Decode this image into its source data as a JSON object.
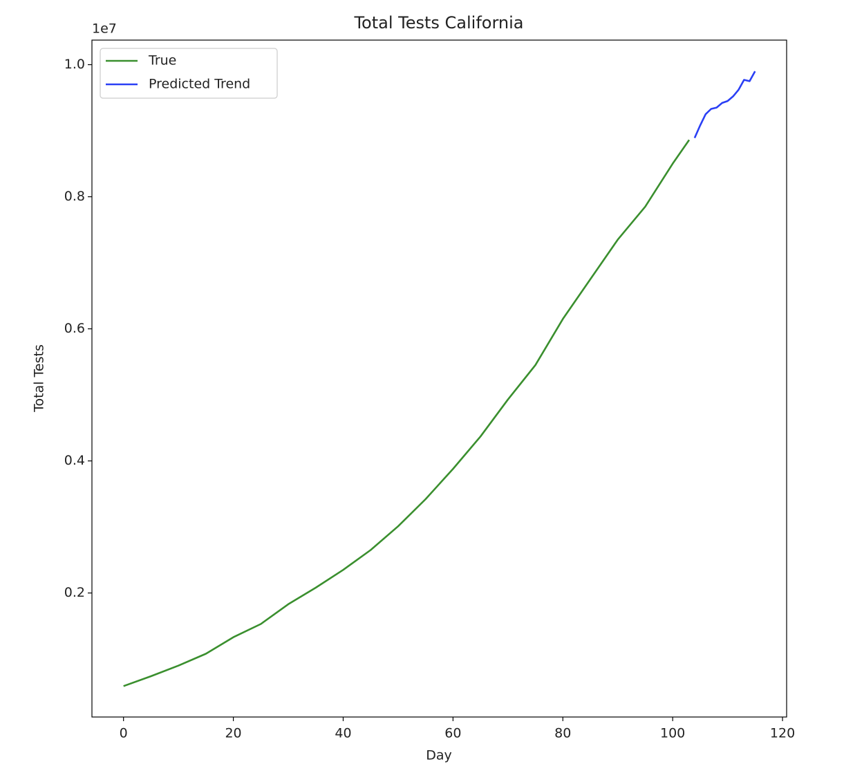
{
  "chart_data": {
    "type": "line",
    "title": "Total Tests California",
    "x_label": "Day",
    "y_label": "Total Tests",
    "y_offset_label": "1e7",
    "legend": "upper left",
    "grid": false,
    "xlim": [
      -5.75,
      120.75
    ],
    "xticks": [
      0,
      20,
      40,
      60,
      80,
      100,
      120
    ],
    "ylim": [
      122000,
      10372000
    ],
    "yticks": [
      {
        "value": 2000000,
        "label": "0.2"
      },
      {
        "value": 4000000,
        "label": "0.4"
      },
      {
        "value": 6000000,
        "label": "0.6"
      },
      {
        "value": 8000000,
        "label": "0.8"
      },
      {
        "value": 10000000,
        "label": "1.0"
      }
    ],
    "series": [
      {
        "name": "True",
        "color": "#3a8f2e",
        "x": [
          0,
          5,
          10,
          15,
          20,
          25,
          30,
          35,
          40,
          45,
          50,
          55,
          60,
          65,
          70,
          75,
          80,
          85,
          90,
          95,
          100,
          103
        ],
        "values": [
          590000,
          740000,
          900000,
          1080000,
          1330000,
          1530000,
          1830000,
          2080000,
          2350000,
          2650000,
          3010000,
          3420000,
          3880000,
          4370000,
          4930000,
          5450000,
          6150000,
          6750000,
          7350000,
          7850000,
          8500000,
          8860000
        ]
      },
      {
        "name": "Predicted Trend",
        "color": "#2a3ff5",
        "x": [
          104,
          105,
          106,
          107,
          108,
          109,
          110,
          111,
          112,
          113,
          114,
          115
        ],
        "values": [
          8890000,
          9080000,
          9250000,
          9330000,
          9350000,
          9420000,
          9450000,
          9520000,
          9620000,
          9770000,
          9750000,
          9900000
        ]
      }
    ]
  }
}
